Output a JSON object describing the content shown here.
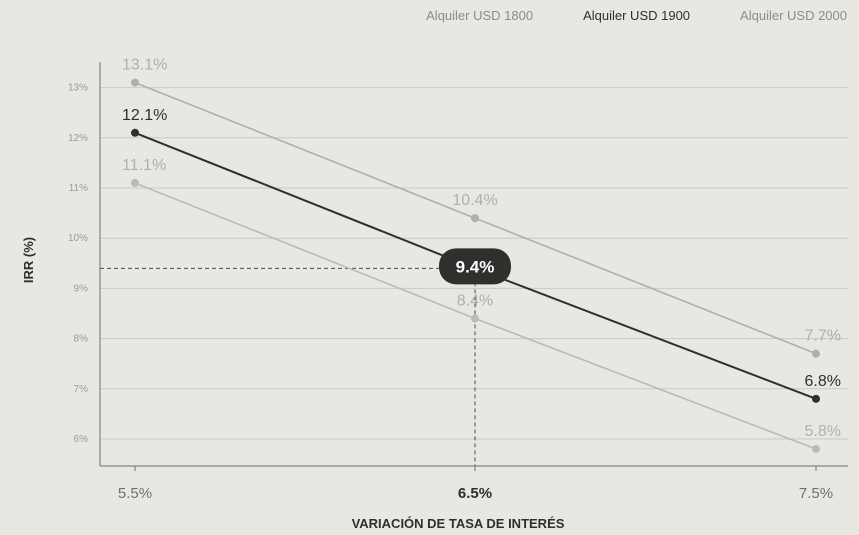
{
  "chart_data": {
    "type": "line",
    "title": "",
    "xlabel": "VARIACIÓN DE TASA DE INTERÉS",
    "ylabel": "IRR (%)",
    "categories": [
      "5.5%",
      "6.5%",
      "7.5%"
    ],
    "highlight_category": "6.5%",
    "yticks": [
      "6%",
      "7%",
      "8%",
      "9%",
      "10%",
      "11%",
      "12%",
      "13%"
    ],
    "ylim": [
      5.5,
      13.5
    ],
    "grid": true,
    "legend_position": "top-right",
    "series": [
      {
        "name": "Alquiler USD 1800",
        "values": [
          11.1,
          8.4,
          5.8
        ],
        "labels": [
          "11.1%",
          "8.4%",
          "5.8%"
        ],
        "color": "#b9bcb6"
      },
      {
        "name": "Alquiler USD 1900",
        "values": [
          12.1,
          9.4,
          6.8
        ],
        "labels": [
          "12.1%",
          "",
          "6.8%"
        ],
        "color": "#2e302d"
      },
      {
        "name": "Alquiler USD 2000",
        "values": [
          13.1,
          10.4,
          7.7
        ],
        "labels": [
          "13.1%",
          "10.4%",
          "7.7%"
        ],
        "color": "#a9b2ab"
      }
    ],
    "active_series": "Alquiler USD 1900",
    "callout": {
      "label": "9.4%",
      "value": 9.4,
      "category": "6.5%"
    }
  }
}
